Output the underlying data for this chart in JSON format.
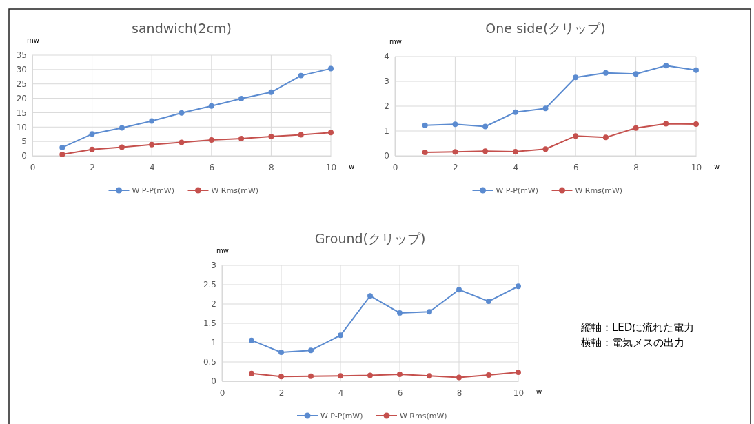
{
  "chart_data": [
    {
      "type": "line",
      "title": "sandwich(2cm)",
      "xlabel": "w",
      "ylabel": "mw",
      "x": [
        1,
        2,
        3,
        4,
        5,
        6,
        7,
        8,
        9,
        10
      ],
      "xlim": [
        0,
        10
      ],
      "xticks": [
        0,
        2,
        4,
        6,
        8,
        10
      ],
      "ylim": [
        0,
        35
      ],
      "yticks": [
        0,
        5,
        10,
        15,
        20,
        25,
        30,
        35
      ],
      "grid": true,
      "legend": "bottom",
      "marker": "circle",
      "series": [
        {
          "name": "W P-P(mW)",
          "color": "#5b8bd0",
          "values": [
            2.9,
            7.6,
            9.7,
            12.1,
            14.9,
            17.3,
            19.9,
            22.1,
            27.9,
            30.3
          ]
        },
        {
          "name": "W Rms(mW)",
          "color": "#c5504d",
          "values": [
            0.5,
            2.2,
            3.0,
            3.9,
            4.7,
            5.5,
            6.0,
            6.7,
            7.3,
            8.1
          ]
        }
      ]
    },
    {
      "type": "line",
      "title": "One side(クリップ)",
      "xlabel": "w",
      "ylabel": "mw",
      "x": [
        1,
        2,
        3,
        4,
        5,
        6,
        7,
        8,
        9,
        10
      ],
      "xlim": [
        0,
        10
      ],
      "xticks": [
        0,
        2,
        4,
        6,
        8,
        10
      ],
      "ylim": [
        0,
        4
      ],
      "yticks": [
        0,
        1,
        2,
        3,
        4
      ],
      "grid": true,
      "legend": "bottom",
      "marker": "circle",
      "series": [
        {
          "name": "W P-P(mW)",
          "color": "#5b8bd0",
          "values": [
            1.23,
            1.27,
            1.18,
            1.76,
            1.91,
            3.16,
            3.34,
            3.3,
            3.63,
            3.45
          ]
        },
        {
          "name": "W Rms(mW)",
          "color": "#c5504d",
          "values": [
            0.14,
            0.16,
            0.19,
            0.17,
            0.27,
            0.8,
            0.74,
            1.12,
            1.29,
            1.28
          ]
        }
      ]
    },
    {
      "type": "line",
      "title": "Ground(クリップ)",
      "xlabel": "w",
      "ylabel": "mw",
      "x": [
        1,
        2,
        3,
        4,
        5,
        6,
        7,
        8,
        9,
        10
      ],
      "xlim": [
        0,
        10
      ],
      "xticks": [
        0,
        2,
        4,
        6,
        8,
        10
      ],
      "ylim": [
        0,
        3
      ],
      "yticks": [
        0,
        0.5,
        1,
        1.5,
        2,
        2.5,
        3
      ],
      "grid": true,
      "legend": "bottom",
      "marker": "circle",
      "series": [
        {
          "name": "W P-P(mW)",
          "color": "#5b8bd0",
          "values": [
            1.06,
            0.75,
            0.8,
            1.19,
            2.21,
            1.77,
            1.8,
            2.37,
            2.07,
            2.46
          ]
        },
        {
          "name": "W Rms(mW)",
          "color": "#c5504d",
          "values": [
            0.2,
            0.12,
            0.13,
            0.14,
            0.15,
            0.18,
            0.14,
            0.1,
            0.16,
            0.23
          ]
        }
      ]
    },
    {
      "type": "other",
      "annotations": [
        "縦軸：LEDに流れた電力",
        "横軸：電気メスの出力"
      ]
    }
  ]
}
